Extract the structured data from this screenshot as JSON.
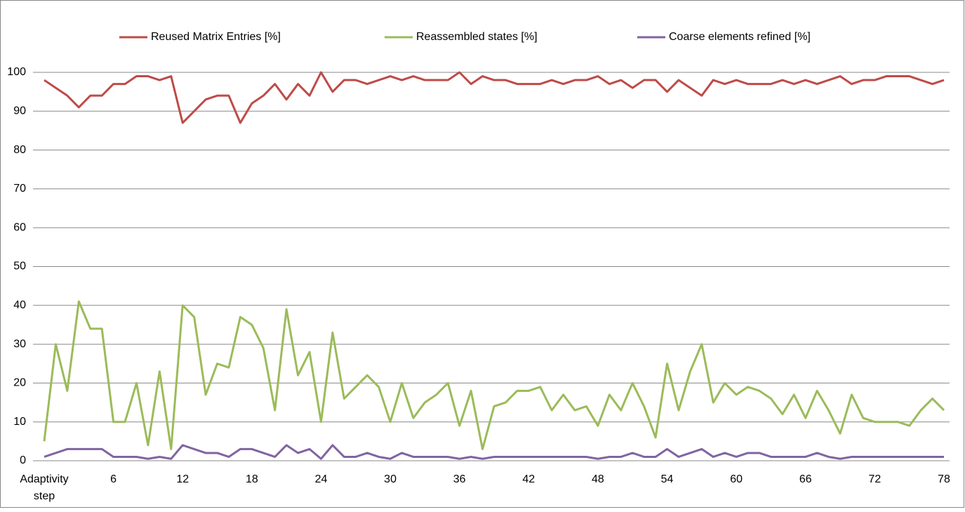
{
  "chart_data": {
    "type": "line",
    "categories": [
      "Adaptivity step",
      null,
      null,
      null,
      null,
      null,
      "6",
      null,
      null,
      null,
      null,
      null,
      "12",
      null,
      null,
      null,
      null,
      null,
      "18",
      null,
      null,
      null,
      null,
      null,
      "24",
      null,
      null,
      null,
      null,
      null,
      "30",
      null,
      null,
      null,
      null,
      null,
      "36",
      null,
      null,
      null,
      null,
      null,
      "42",
      null,
      null,
      null,
      null,
      null,
      "48",
      null,
      null,
      null,
      null,
      null,
      "54",
      null,
      null,
      null,
      null,
      null,
      "60",
      null,
      null,
      null,
      null,
      null,
      "66",
      null,
      null,
      null,
      null,
      null,
      "72",
      null,
      null,
      null,
      null,
      null,
      "78"
    ],
    "series": [
      {
        "name": "Reused Matrix Entries [%]",
        "color": "#be4b48",
        "values": [
          98,
          96,
          94,
          91,
          94,
          94,
          97,
          97,
          99,
          99,
          98,
          99,
          87,
          90,
          93,
          94,
          94,
          87,
          92,
          94,
          97,
          93,
          97,
          94,
          100,
          95,
          98,
          98,
          97,
          98,
          99,
          98,
          99,
          98,
          98,
          98,
          100,
          97,
          99,
          98,
          98,
          97,
          97,
          97,
          98,
          97,
          98,
          98,
          99,
          97,
          98,
          96,
          98,
          98,
          95,
          98,
          96,
          94,
          98,
          97,
          98,
          97,
          97,
          97,
          98,
          97,
          98,
          97,
          98,
          99,
          97,
          98,
          98,
          99,
          99,
          99,
          98,
          97,
          98
        ]
      },
      {
        "name": "Reassembled states [%]",
        "color": "#9bbb59",
        "values": [
          5,
          30,
          18,
          41,
          34,
          34,
          10,
          10,
          20,
          4,
          23,
          3,
          40,
          37,
          17,
          25,
          24,
          37,
          35,
          29,
          13,
          39,
          22,
          28,
          10,
          33,
          16,
          19,
          22,
          19,
          10,
          20,
          11,
          15,
          17,
          20,
          9,
          18,
          3,
          14,
          15,
          18,
          18,
          19,
          13,
          17,
          13,
          14,
          9,
          17,
          13,
          20,
          14,
          6,
          25,
          13,
          23,
          30,
          15,
          20,
          17,
          19,
          18,
          16,
          12,
          17,
          11,
          18,
          13,
          7,
          17,
          11,
          10,
          10,
          10,
          9,
          13,
          16,
          13
        ]
      },
      {
        "name": "Coarse elements refined [%]",
        "color": "#8064a2",
        "values": [
          1,
          2,
          3,
          3,
          3,
          3,
          1,
          1,
          1,
          0.5,
          1,
          0.5,
          4,
          3,
          2,
          2,
          1,
          3,
          3,
          2,
          1,
          4,
          2,
          3,
          0.5,
          4,
          1,
          1,
          2,
          1,
          0.5,
          2,
          1,
          1,
          1,
          1,
          0.5,
          1,
          0.5,
          1,
          1,
          1,
          1,
          1,
          1,
          1,
          1,
          1,
          0.5,
          1,
          1,
          2,
          1,
          1,
          3,
          1,
          2,
          3,
          1,
          2,
          1,
          2,
          2,
          1,
          1,
          1,
          1,
          2,
          1,
          0.5,
          1,
          1,
          1,
          1,
          1,
          1,
          1,
          1,
          1
        ]
      }
    ],
    "ylim": [
      0,
      100
    ],
    "yticks": [
      0,
      10,
      20,
      30,
      40,
      50,
      60,
      70,
      80,
      90,
      100
    ],
    "grid": true,
    "legend": "top"
  }
}
